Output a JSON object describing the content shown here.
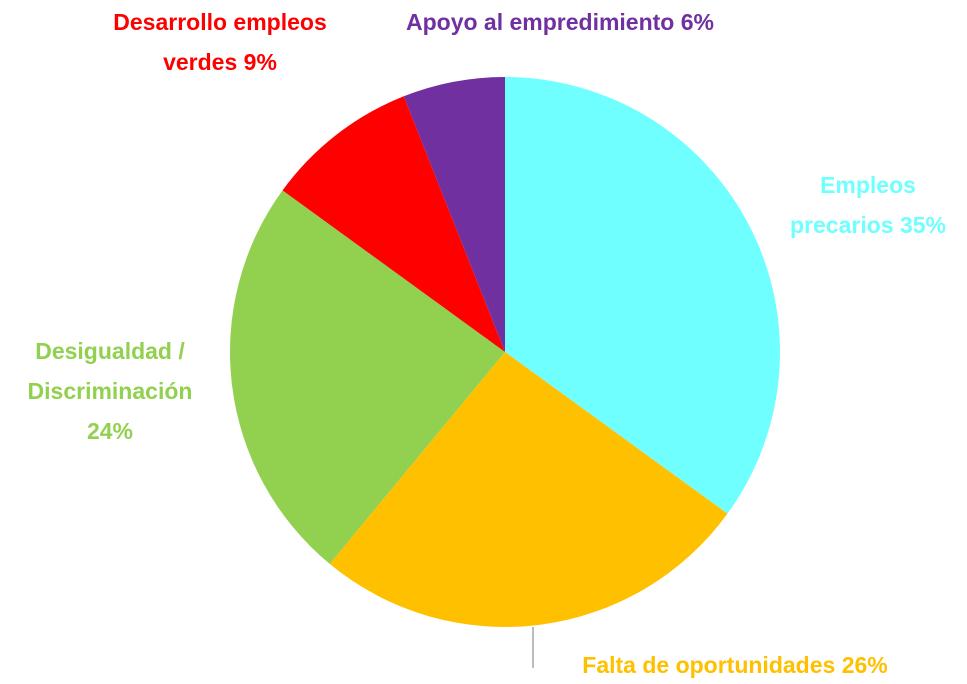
{
  "chart_data": {
    "type": "pie",
    "categories": [
      "Empleos precarios",
      "Falta de oportunidades",
      "Desigualdad / Discriminación",
      "Desarrollo empleos verdes",
      "Apoyo al empredimiento"
    ],
    "values": [
      35,
      26,
      24,
      9,
      6
    ],
    "value_labels": [
      "35%",
      "26%",
      "24%",
      "9%",
      "6%"
    ],
    "colors": [
      "#70FFFF",
      "#FFC000",
      "#92D050",
      "#FF0000",
      "#7030A0"
    ]
  }
}
